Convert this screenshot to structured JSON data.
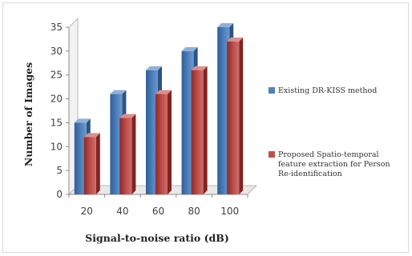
{
  "chart_data": {
    "type": "bar",
    "categories": [
      "20",
      "40",
      "60",
      "80",
      "100"
    ],
    "series": [
      {
        "name": "Existing  DR-KISS  method",
        "color": "#4f81bd",
        "values": [
          15,
          21,
          26,
          30,
          35
        ]
      },
      {
        "name": "Proposed Spatio-temporal feature extraction for Person Re-identification",
        "color": "#c0504d",
        "values": [
          12,
          16,
          21,
          26,
          32
        ]
      }
    ],
    "y_ticks": [
      "0",
      "5",
      "10",
      "15",
      "20",
      "25",
      "30",
      "35"
    ],
    "xlabel": "Signal-to-noise ratio (dB)",
    "ylabel": "Number of Images",
    "ylim": [
      0,
      35
    ],
    "legend_position": "right",
    "grid": false
  }
}
